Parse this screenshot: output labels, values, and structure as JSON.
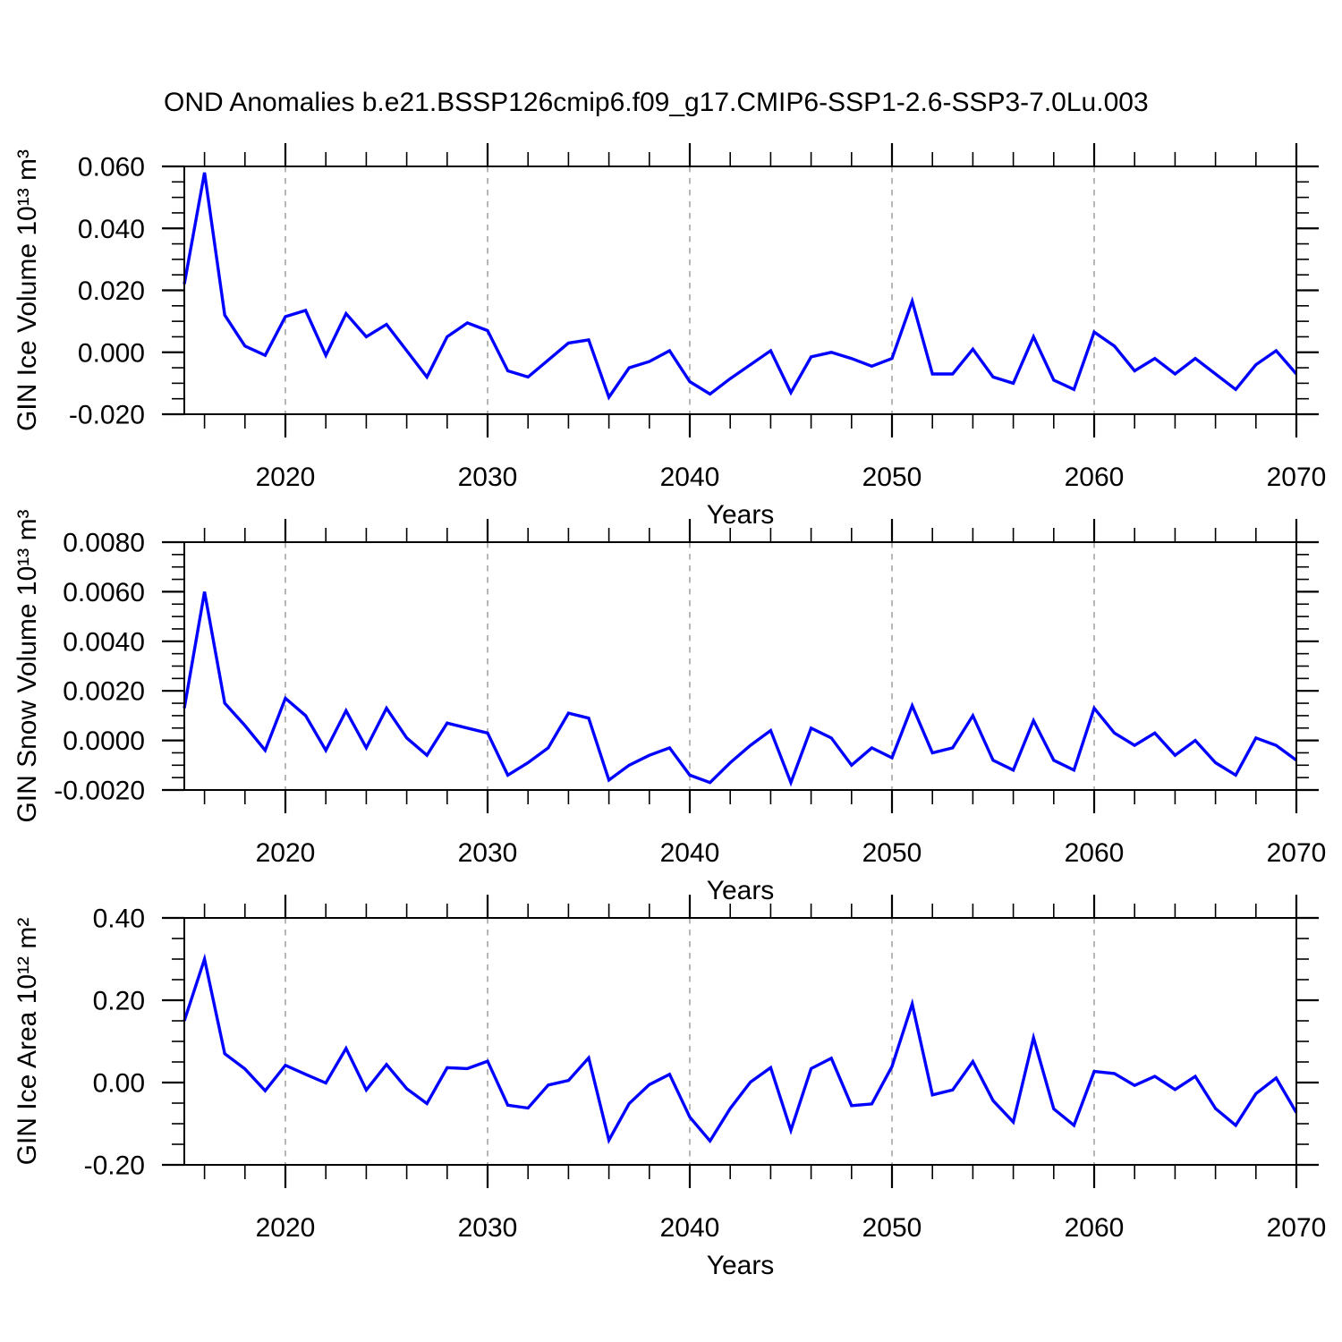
{
  "title": "OND Anomalies b.e21.BSSP126cmip6.f09_g17.CMIP6-SSP1-2.6-SSP3-7.0Lu.003",
  "colors": {
    "line": "#0000ff",
    "grid": "#909090",
    "axis": "#000000",
    "background": "#ffffff"
  },
  "chart_data": [
    {
      "type": "line",
      "name": "gin-ice-volume",
      "ylabel": "GIN Ice Volume 10¹³ m³",
      "xlabel": "Years",
      "x_start": 2015,
      "x_end": 2070,
      "xticks": [
        2020,
        2030,
        2040,
        2050,
        2060,
        2070
      ],
      "xtick_labels": [
        "2020",
        "2030",
        "2040",
        "2050",
        "2060",
        "2070"
      ],
      "x_minor_step": 2,
      "ylim": [
        -0.02,
        0.06
      ],
      "ytick_values": [
        0.06,
        0.04,
        0.02,
        0.0,
        -0.02
      ],
      "ytick_labels": [
        "0.060",
        "0.040",
        "0.020",
        "0.000",
        "-0.020"
      ],
      "y_minor_step": 0.005,
      "y_minor_per_major": 4,
      "grid_x": [
        2020,
        2030,
        2040,
        2050,
        2060
      ],
      "grid_on": true,
      "legend": "none",
      "line_color": "#0000ff",
      "years": [
        2015,
        2016,
        2017,
        2018,
        2019,
        2020,
        2021,
        2022,
        2023,
        2024,
        2025,
        2026,
        2027,
        2028,
        2029,
        2030,
        2031,
        2032,
        2033,
        2034,
        2035,
        2036,
        2037,
        2038,
        2039,
        2040,
        2041,
        2042,
        2043,
        2044,
        2045,
        2046,
        2047,
        2048,
        2049,
        2050,
        2051,
        2052,
        2053,
        2054,
        2055,
        2056,
        2057,
        2058,
        2059,
        2060,
        2061,
        2062,
        2063,
        2064,
        2065,
        2066,
        2067,
        2068,
        2069,
        2070
      ],
      "values": [
        0.022,
        0.058,
        0.012,
        0.002,
        -0.001,
        0.0115,
        0.0135,
        -0.001,
        0.0125,
        0.005,
        0.009,
        0.0005,
        -0.008,
        0.005,
        0.0095,
        0.007,
        -0.006,
        -0.008,
        -0.0025,
        0.003,
        0.004,
        -0.0145,
        -0.005,
        -0.003,
        0.0005,
        -0.0095,
        -0.0135,
        -0.0085,
        -0.004,
        0.0005,
        -0.013,
        -0.0015,
        0.0,
        -0.002,
        -0.0045,
        -0.002,
        0.0165,
        -0.007,
        -0.007,
        0.001,
        -0.008,
        -0.01,
        0.005,
        -0.009,
        -0.012,
        0.0065,
        0.002,
        -0.006,
        -0.002,
        -0.007,
        -0.002,
        -0.007,
        -0.012,
        -0.004,
        0.0005,
        -0.007
      ]
    },
    {
      "type": "line",
      "name": "gin-snow-volume",
      "ylabel": "GIN Snow Volume 10¹³ m³",
      "xlabel": "Years",
      "x_start": 2015,
      "x_end": 2070,
      "xticks": [
        2020,
        2030,
        2040,
        2050,
        2060,
        2070
      ],
      "xtick_labels": [
        "2020",
        "2030",
        "2040",
        "2050",
        "2060",
        "2070"
      ],
      "x_minor_step": 2,
      "ylim": [
        -0.002,
        0.008
      ],
      "ytick_values": [
        0.008,
        0.006,
        0.004,
        0.002,
        0.0,
        -0.002
      ],
      "ytick_labels": [
        "0.0080",
        "0.0060",
        "0.0040",
        "0.0020",
        "0.0000",
        "-0.0020"
      ],
      "y_minor_step": 0.0005,
      "y_minor_per_major": 4,
      "grid_x": [
        2020,
        2030,
        2040,
        2050,
        2060
      ],
      "grid_on": true,
      "legend": "none",
      "line_color": "#0000ff",
      "years": [
        2015,
        2016,
        2017,
        2018,
        2019,
        2020,
        2021,
        2022,
        2023,
        2024,
        2025,
        2026,
        2027,
        2028,
        2029,
        2030,
        2031,
        2032,
        2033,
        2034,
        2035,
        2036,
        2037,
        2038,
        2039,
        2040,
        2041,
        2042,
        2043,
        2044,
        2045,
        2046,
        2047,
        2048,
        2049,
        2050,
        2051,
        2052,
        2053,
        2054,
        2055,
        2056,
        2057,
        2058,
        2059,
        2060,
        2061,
        2062,
        2063,
        2064,
        2065,
        2066,
        2067,
        2068,
        2069,
        2070
      ],
      "values": [
        0.0013,
        0.006,
        0.0015,
        0.0006,
        -0.0004,
        0.0017,
        0.001,
        -0.0004,
        0.0012,
        -0.0003,
        0.0013,
        0.0001,
        -0.0006,
        0.0007,
        0.0005,
        0.0003,
        -0.0014,
        -0.0009,
        -0.0003,
        0.0011,
        0.0009,
        -0.0016,
        -0.001,
        -0.0006,
        -0.0003,
        -0.0014,
        -0.0017,
        -0.0009,
        -0.0002,
        0.0004,
        -0.0017,
        0.0005,
        0.0001,
        -0.001,
        -0.0003,
        -0.0007,
        0.0014,
        -0.0005,
        -0.0003,
        0.001,
        -0.0008,
        -0.0012,
        0.0008,
        -0.0008,
        -0.0012,
        0.0013,
        0.0003,
        -0.0002,
        0.0003,
        -0.0006,
        0.0,
        -0.0009,
        -0.0014,
        0.0001,
        -0.0002,
        -0.0008
      ]
    },
    {
      "type": "line",
      "name": "gin-ice-area",
      "ylabel": "GIN Ice Area 10¹² m²",
      "xlabel": "Years",
      "x_start": 2015,
      "x_end": 2070,
      "xticks": [
        2020,
        2030,
        2040,
        2050,
        2060,
        2070
      ],
      "xtick_labels": [
        "2020",
        "2030",
        "2040",
        "2050",
        "2060",
        "2070"
      ],
      "x_minor_step": 2,
      "ylim": [
        -0.2,
        0.4
      ],
      "ytick_values": [
        0.4,
        0.2,
        0.0,
        -0.2
      ],
      "ytick_labels": [
        "0.40",
        "0.20",
        "0.00",
        "-0.20"
      ],
      "y_minor_step": 0.05,
      "y_minor_per_major": 4,
      "grid_x": [
        2020,
        2030,
        2040,
        2050,
        2060
      ],
      "grid_on": true,
      "legend": "none",
      "line_color": "#0000ff",
      "years": [
        2015,
        2016,
        2017,
        2018,
        2019,
        2020,
        2021,
        2022,
        2023,
        2024,
        2025,
        2026,
        2027,
        2028,
        2029,
        2030,
        2031,
        2032,
        2033,
        2034,
        2035,
        2036,
        2037,
        2038,
        2039,
        2040,
        2041,
        2042,
        2043,
        2044,
        2045,
        2046,
        2047,
        2048,
        2049,
        2050,
        2051,
        2052,
        2053,
        2054,
        2055,
        2056,
        2057,
        2058,
        2059,
        2060,
        2061,
        2062,
        2063,
        2064,
        2065,
        2066,
        2067,
        2068,
        2069,
        2070
      ],
      "values": [
        0.15,
        0.3,
        0.07,
        0.033,
        -0.02,
        0.042,
        0.02,
        -0.001,
        0.083,
        -0.018,
        0.044,
        -0.015,
        -0.051,
        0.036,
        0.034,
        0.052,
        -0.055,
        -0.062,
        -0.006,
        0.005,
        0.06,
        -0.14,
        -0.051,
        -0.005,
        0.02,
        -0.084,
        -0.142,
        -0.063,
        0.001,
        0.036,
        -0.116,
        0.034,
        0.059,
        -0.056,
        -0.052,
        0.039,
        0.191,
        -0.03,
        -0.018,
        0.051,
        -0.044,
        -0.096,
        0.109,
        -0.064,
        -0.104,
        0.027,
        0.022,
        -0.007,
        0.015,
        -0.017,
        0.015,
        -0.063,
        -0.104,
        -0.027,
        0.011,
        -0.073
      ]
    }
  ]
}
